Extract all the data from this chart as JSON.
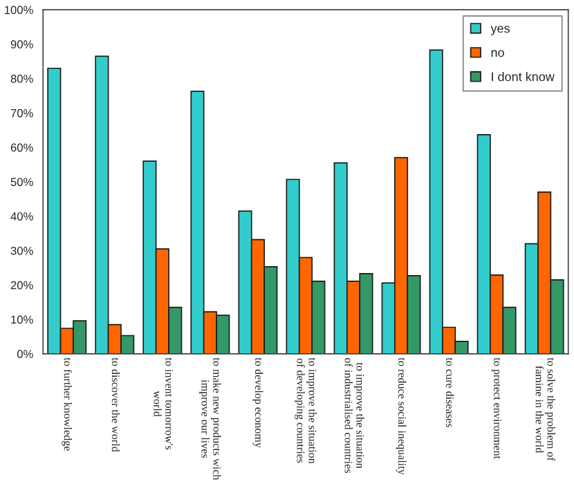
{
  "chart_data": {
    "type": "bar",
    "categories": [
      "to further knowledge",
      "to discover the world",
      "to invent tomorrow's\nworld",
      "to make new products wich\nimprove our lives",
      "to develop economy",
      "to improve the situation\nof developing countries",
      "to improve the situation\nof industrialised countries",
      "to reduce social inequality",
      "to cure diseases",
      "to protect environment",
      "to solve the problem of\nfamine in the world"
    ],
    "series": [
      {
        "name": "yes",
        "color": "#33cccc",
        "values": [
          83,
          86.5,
          56,
          76.3,
          41.5,
          50.7,
          55.5,
          20.6,
          88.3,
          63.7,
          32
        ]
      },
      {
        "name": "no",
        "color": "#ff6600",
        "values": [
          7.4,
          8.5,
          30.5,
          12.2,
          33.2,
          28,
          21.1,
          57,
          7.7,
          22.9,
          47
        ]
      },
      {
        "name": "I dont know",
        "color": "#339966",
        "values": [
          9.6,
          5.3,
          13.5,
          11.2,
          25.3,
          21.1,
          23.3,
          22.7,
          3.6,
          13.5,
          21.5
        ]
      }
    ],
    "ylim": [
      0,
      100
    ],
    "yticks": [
      {
        "value": 0,
        "label": "0%"
      },
      {
        "value": 10,
        "label": "10%"
      },
      {
        "value": 20,
        "label": "20%"
      },
      {
        "value": 30,
        "label": "30%"
      },
      {
        "value": 40,
        "label": "40%"
      },
      {
        "value": 50,
        "label": "50%"
      },
      {
        "value": 60,
        "label": "60%"
      },
      {
        "value": 70,
        "label": "70%"
      },
      {
        "value": 80,
        "label": "80%"
      },
      {
        "value": 90,
        "label": "90%"
      },
      {
        "value": 100,
        "label": "100%"
      }
    ],
    "grid": false,
    "legend": "top right"
  }
}
